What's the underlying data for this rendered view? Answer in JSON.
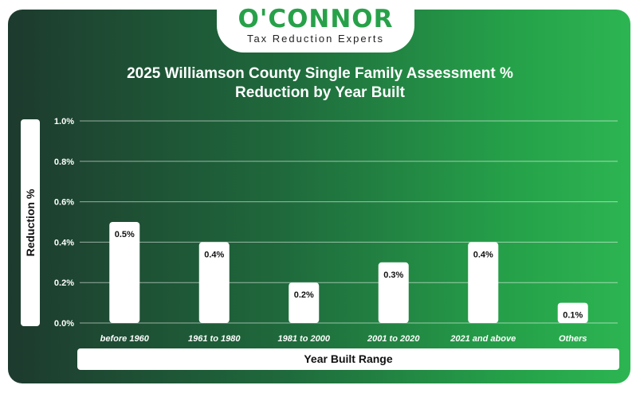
{
  "logo": {
    "name": "O'CONNOR",
    "tagline": "Tax Reduction Experts"
  },
  "colors": {
    "brand_green": "#27a149",
    "bar": "#ffffff",
    "grid": "#ffffff"
  },
  "chart_data": {
    "type": "bar",
    "title_line1": "2025 Williamson County Single Family Assessment %",
    "title_line2": "Reduction by Year Built",
    "xlabel": "Year Built Range",
    "ylabel": "Reduction %",
    "categories": [
      "before 1960",
      "1961 to 1980",
      "1981 to 2000",
      "2001 to 2020",
      "2021 and above",
      "Others"
    ],
    "values": [
      0.5,
      0.4,
      0.2,
      0.3,
      0.4,
      0.1
    ],
    "data_labels": [
      "0.5%",
      "0.4%",
      "0.2%",
      "0.3%",
      "0.4%",
      "0.1%"
    ],
    "ylim": [
      0,
      1.0
    ],
    "yticks": [
      0.0,
      0.2,
      0.4,
      0.6,
      0.8,
      1.0
    ],
    "ytick_labels": [
      "0.0%",
      "0.2%",
      "0.4%",
      "0.6%",
      "0.8%",
      "1.0%"
    ],
    "grid": true,
    "legend": "none"
  }
}
